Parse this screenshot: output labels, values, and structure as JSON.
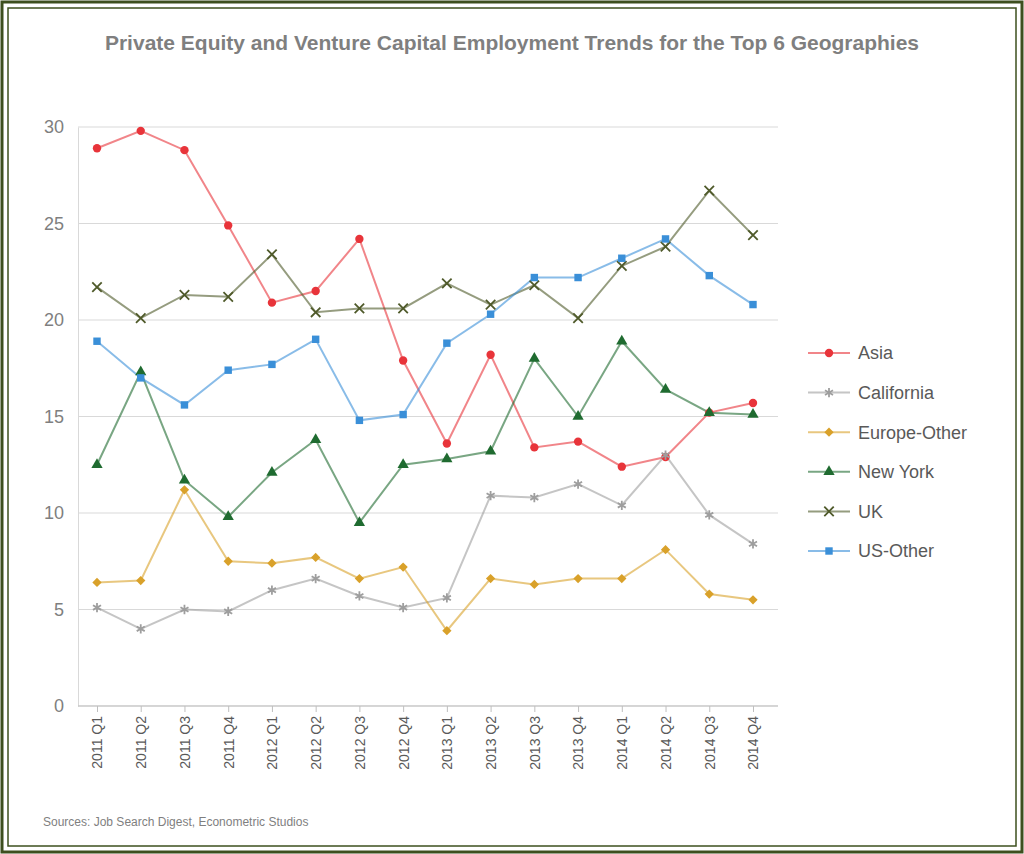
{
  "chart_data": {
    "type": "line",
    "title": "Private Equity and Venture Capital Employment Trends for the Top 6 Geographies",
    "source": "Sources: Job Search Digest, Econometric Studios",
    "categories": [
      "2011 Q1",
      "2011 Q2",
      "2011 Q3",
      "2011 Q4",
      "2012 Q1",
      "2012 Q2",
      "2012 Q3",
      "2012 Q4",
      "2013 Q1",
      "2013 Q2",
      "2013 Q3",
      "2013 Q4",
      "2014 Q1",
      "2014 Q2",
      "2014 Q3",
      "2014 Q4"
    ],
    "series": [
      {
        "name": "Asia",
        "color": "#e8343a",
        "marker": "circle",
        "values": [
          28.9,
          29.8,
          28.8,
          24.9,
          20.9,
          21.5,
          24.2,
          17.9,
          13.6,
          18.2,
          13.4,
          13.7,
          12.4,
          12.9,
          15.2,
          15.7
        ]
      },
      {
        "name": "California",
        "color": "#9e9e9e",
        "marker": "asterisk",
        "values": [
          5.1,
          4.0,
          5.0,
          4.9,
          6.0,
          6.6,
          5.7,
          5.1,
          5.6,
          10.9,
          10.8,
          11.5,
          10.4,
          13.0,
          9.9,
          8.4
        ]
      },
      {
        "name": "Europe-Other",
        "color": "#d9a12a",
        "marker": "diamond",
        "values": [
          6.4,
          6.5,
          11.2,
          7.5,
          7.4,
          7.7,
          6.6,
          7.2,
          3.9,
          6.6,
          6.3,
          6.6,
          6.6,
          8.1,
          5.8,
          5.5
        ]
      },
      {
        "name": "New York",
        "color": "#1f6b30",
        "marker": "triangle",
        "values": [
          12.5,
          17.3,
          11.7,
          9.8,
          12.1,
          13.8,
          9.5,
          12.5,
          12.8,
          13.2,
          18.0,
          15.0,
          18.9,
          16.4,
          15.2,
          15.1
        ]
      },
      {
        "name": "UK",
        "color": "#4f5a2a",
        "marker": "x",
        "values": [
          21.7,
          20.1,
          21.3,
          21.2,
          23.4,
          20.4,
          20.6,
          20.6,
          21.9,
          20.8,
          21.8,
          20.1,
          22.8,
          23.8,
          26.7,
          24.4
        ]
      },
      {
        "name": "US-Other",
        "color": "#3a8fd8",
        "marker": "square",
        "values": [
          18.9,
          17.0,
          15.6,
          17.4,
          17.7,
          19.0,
          14.8,
          15.1,
          18.8,
          20.3,
          22.2,
          22.2,
          23.2,
          24.2,
          22.3,
          20.8
        ]
      }
    ],
    "ylim": [
      0,
      30
    ],
    "yticks": [
      0,
      5,
      10,
      15,
      20,
      25,
      30
    ],
    "grid": true,
    "legend": "right"
  }
}
